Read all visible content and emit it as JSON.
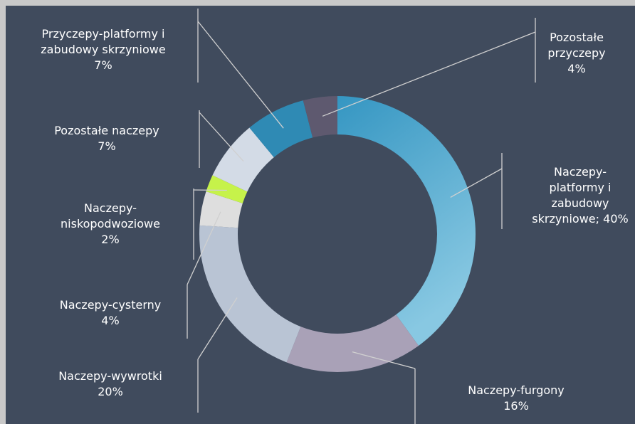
{
  "chart_data": {
    "type": "donut",
    "categories": [
      "Naczepy-platformy i zabudowy skrzyniowe",
      "Naczepy-furgony",
      "Naczepy-wywrotki",
      "Naczepy-cysterny",
      "Naczepy-niskopodwoziowe",
      "Pozostałe naczepy",
      "Przyczepy-platformy i zabudowy skrzyniowe",
      "Pozostałe przyczepy"
    ],
    "values": [
      40,
      16,
      20,
      4,
      2,
      7,
      7,
      4
    ],
    "value_labels": [
      "; 40%",
      "16%",
      "20%",
      "4%",
      "2%",
      "7%",
      "7%",
      "4%"
    ],
    "colors": [
      "#4fa6cf",
      "#a9a1b7",
      "#b9c4d4",
      "#dedede",
      "#c6f24a",
      "#d3dbe6",
      "#2f8ab4",
      "#5e596f"
    ]
  }
}
